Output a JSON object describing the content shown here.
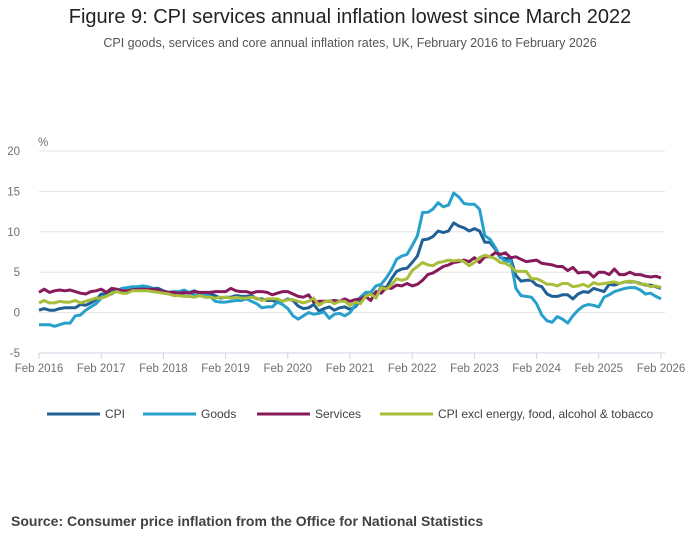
{
  "title": "Figure 9: CPI services annual inflation lowest since March 2022",
  "subtitle": "CPI goods, services and core annual inflation rates, UK, February 2016 to February 2026",
  "source": "Source: Consumer price inflation from the Office for National Statistics",
  "chart_data": {
    "type": "line",
    "ylabel": "%",
    "ylim": [
      -5,
      20
    ],
    "yticks": [
      "-5",
      "0",
      "5",
      "10",
      "15",
      "20"
    ],
    "yticks_values": [
      -5,
      0,
      5,
      10,
      15,
      20
    ],
    "xstart": "Feb 2016",
    "xend": "Feb 2026",
    "xticks": [
      "Feb 2016",
      "Feb 2017",
      "Feb 2018",
      "Feb 2019",
      "Feb 2020",
      "Feb 2021",
      "Feb 2022",
      "Feb 2023",
      "Feb 2024",
      "Feb 2025",
      "Feb 2026"
    ],
    "grid": true,
    "legend_position": "bottom",
    "series": [
      {
        "name": "CPI",
        "color": "#206095",
        "values": [
          0.3,
          0.5,
          0.3,
          0.3,
          0.5,
          0.6,
          0.6,
          0.6,
          1.0,
          0.9,
          1.2,
          1.6,
          2.3,
          2.3,
          2.7,
          2.9,
          2.6,
          2.6,
          2.9,
          3.0,
          3.0,
          3.1,
          3.0,
          3.0,
          2.7,
          2.5,
          2.4,
          2.4,
          2.4,
          2.5,
          2.7,
          2.4,
          2.4,
          2.3,
          2.1,
          1.8,
          1.9,
          1.9,
          2.1,
          2.0,
          2.0,
          2.1,
          1.7,
          1.7,
          1.5,
          1.5,
          1.3,
          1.4,
          1.7,
          1.5,
          0.8,
          0.5,
          0.6,
          1.0,
          0.2,
          0.5,
          0.7,
          0.3,
          0.6,
          0.7,
          0.4,
          0.7,
          1.5,
          2.1,
          2.5,
          2.0,
          3.2,
          3.1,
          4.2,
          5.1,
          5.4,
          5.5,
          6.2,
          7.0,
          9.0,
          9.1,
          9.4,
          10.1,
          9.9,
          10.1,
          11.1,
          10.7,
          10.5,
          10.1,
          10.4,
          10.1,
          8.7,
          8.7,
          7.9,
          6.8,
          6.7,
          6.7,
          4.6,
          3.9,
          4.0,
          4.0,
          3.4,
          3.2,
          2.3,
          2.0,
          2.0,
          2.2,
          2.2,
          1.7,
          2.3,
          2.6,
          2.5,
          3.0,
          2.8,
          2.6,
          3.5,
          3.4,
          3.6,
          3.8,
          3.8,
          3.8,
          3.6,
          3.4,
          3.4,
          3.2,
          3.0
        ]
      },
      {
        "name": "Goods",
        "color": "#27a0cc",
        "values": [
          -1.5,
          -1.5,
          -1.5,
          -1.7,
          -1.5,
          -1.3,
          -1.3,
          -0.4,
          -0.3,
          0.3,
          0.7,
          1.1,
          1.8,
          2.1,
          2.3,
          2.7,
          3.0,
          3.1,
          3.2,
          3.2,
          3.3,
          3.2,
          3.0,
          2.6,
          2.5,
          2.5,
          2.6,
          2.6,
          2.8,
          2.5,
          2.2,
          2.1,
          2.2,
          2.0,
          1.4,
          1.3,
          1.3,
          1.4,
          1.5,
          1.5,
          1.7,
          1.4,
          1.1,
          0.6,
          0.7,
          0.7,
          1.3,
          1.0,
          0.5,
          -0.4,
          -0.8,
          -0.4,
          0.0,
          -0.2,
          -0.1,
          0.1,
          -0.7,
          -0.2,
          -0.1,
          -0.4,
          0.0,
          0.9,
          1.9,
          2.5,
          2.5,
          3.3,
          3.5,
          4.3,
          5.3,
          6.6,
          7.0,
          7.2,
          8.3,
          9.5,
          12.4,
          12.4,
          12.8,
          13.6,
          13.1,
          13.3,
          14.8,
          14.3,
          13.5,
          13.4,
          13.4,
          12.8,
          9.5,
          9.1,
          8.1,
          6.9,
          6.3,
          6.4,
          3.0,
          2.1,
          2.0,
          1.9,
          1.1,
          -0.3,
          -1.0,
          -1.2,
          -0.5,
          -0.8,
          -1.3,
          -0.4,
          0.3,
          0.8,
          1.0,
          0.9,
          0.7,
          1.9,
          2.2,
          2.6,
          2.8,
          3.0,
          3.1,
          3.1,
          2.8,
          2.3,
          2.4,
          2.0,
          1.7
        ]
      },
      {
        "name": "Services",
        "color": "#871a5b",
        "values": [
          2.5,
          2.9,
          2.5,
          2.7,
          2.8,
          2.7,
          2.8,
          2.6,
          2.4,
          2.3,
          2.6,
          2.7,
          2.9,
          2.5,
          3.0,
          2.9,
          2.7,
          2.7,
          2.8,
          2.9,
          2.9,
          2.9,
          2.9,
          2.8,
          2.6,
          2.5,
          2.5,
          2.4,
          2.5,
          2.4,
          2.6,
          2.5,
          2.5,
          2.5,
          2.6,
          2.6,
          2.6,
          3.0,
          2.7,
          2.6,
          2.6,
          2.4,
          2.6,
          2.6,
          2.5,
          2.2,
          2.4,
          2.6,
          2.6,
          2.3,
          2.0,
          1.9,
          2.2,
          1.3,
          1.4,
          1.4,
          1.4,
          1.5,
          1.4,
          1.7,
          1.4,
          1.6,
          1.7,
          2.0,
          1.5,
          2.6,
          2.4,
          3.1,
          3.0,
          3.4,
          3.3,
          3.6,
          3.3,
          3.5,
          4.0,
          4.7,
          4.9,
          5.3,
          5.7,
          5.9,
          6.2,
          6.3,
          6.5,
          6.3,
          6.8,
          6.2,
          6.9,
          6.9,
          7.4,
          7.2,
          7.4,
          6.8,
          6.9,
          6.6,
          6.3,
          6.4,
          6.5,
          6.1,
          6.0,
          5.9,
          5.7,
          5.7,
          5.2,
          5.6,
          4.9,
          5.0,
          5.0,
          4.4,
          5.0,
          5.0,
          4.7,
          5.4,
          4.7,
          4.7,
          5.0,
          4.7,
          4.7,
          4.5,
          4.4,
          4.5,
          4.3
        ]
      },
      {
        "name": "CPI excl energy, food, alcohol & tobacco",
        "color": "#a8bd3a",
        "values": [
          1.2,
          1.5,
          1.2,
          1.2,
          1.4,
          1.3,
          1.3,
          1.5,
          1.2,
          1.4,
          1.6,
          1.8,
          1.8,
          2.0,
          2.4,
          2.6,
          2.4,
          2.4,
          2.7,
          2.7,
          2.7,
          2.7,
          2.6,
          2.5,
          2.4,
          2.3,
          2.1,
          2.1,
          2.0,
          2.0,
          1.9,
          2.1,
          1.9,
          1.9,
          1.8,
          1.9,
          1.9,
          1.8,
          1.9,
          1.8,
          1.8,
          1.9,
          1.8,
          1.5,
          1.7,
          1.7,
          1.7,
          1.4,
          1.6,
          1.6,
          1.4,
          1.2,
          1.4,
          1.8,
          0.9,
          1.3,
          1.5,
          1.1,
          1.4,
          1.4,
          0.9,
          1.3,
          1.1,
          2.0,
          2.3,
          1.8,
          3.1,
          2.9,
          3.4,
          4.2,
          4.0,
          4.2,
          5.2,
          5.7,
          6.2,
          5.9,
          5.8,
          6.2,
          6.3,
          6.5,
          6.4,
          6.5,
          6.3,
          5.8,
          6.2,
          6.8,
          7.1,
          6.9,
          6.7,
          6.2,
          6.1,
          5.7,
          5.1,
          5.1,
          5.1,
          4.2,
          4.2,
          3.9,
          3.5,
          3.5,
          3.3,
          3.6,
          3.6,
          3.2,
          3.3,
          3.5,
          3.2,
          3.7,
          3.5,
          3.6,
          3.7,
          3.8,
          3.6,
          3.8,
          3.9,
          3.8,
          3.5,
          3.5,
          3.2,
          3.3,
          3.1
        ]
      }
    ]
  }
}
